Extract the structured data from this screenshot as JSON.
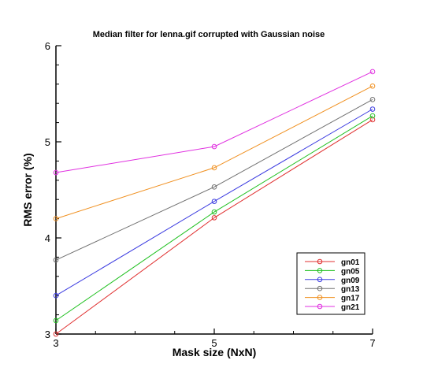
{
  "chart_data": {
    "type": "line",
    "title": "Median filter for lenna.gif corrupted with Gaussian noise",
    "xlabel": "Mask size (NxN)",
    "ylabel": "RMS error (%)",
    "x": [
      3,
      5,
      7
    ],
    "xticks": [
      3,
      5,
      7
    ],
    "yticks": [
      3,
      4,
      5,
      6
    ],
    "xlim": [
      3,
      7
    ],
    "ylim": [
      3,
      6
    ],
    "grid": false,
    "legend_position": "bottom-right",
    "series": [
      {
        "name": "gn01",
        "color": "#e03030",
        "values": [
          3.0,
          4.21,
          5.23
        ]
      },
      {
        "name": "gn05",
        "color": "#20c020",
        "values": [
          3.14,
          4.27,
          5.27
        ]
      },
      {
        "name": "gn09",
        "color": "#3a3ae0",
        "values": [
          3.4,
          4.38,
          5.34
        ]
      },
      {
        "name": "gn13",
        "color": "#707070",
        "values": [
          3.77,
          4.53,
          5.44
        ]
      },
      {
        "name": "gn17",
        "color": "#f09020",
        "values": [
          4.2,
          4.73,
          5.58
        ]
      },
      {
        "name": "gn21",
        "color": "#e030e0",
        "values": [
          4.68,
          4.95,
          5.73
        ]
      }
    ]
  }
}
